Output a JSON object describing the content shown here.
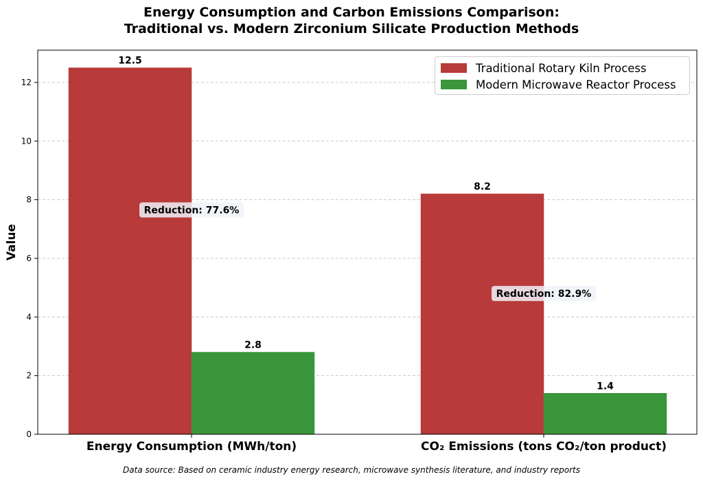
{
  "title_lines": [
    "Energy Consumption and Carbon Emissions Comparison:",
    "Traditional vs. Modern Zirconium Silicate Production Methods"
  ],
  "source_note": "Data source: Based on ceramic industry energy research, microwave synthesis literature, and industry reports",
  "chart_data": {
    "type": "bar",
    "ylabel": "Value",
    "xlabel": "",
    "ylim": [
      0,
      13.1
    ],
    "yticks": [
      "0",
      "2",
      "4",
      "6",
      "8",
      "10",
      "12"
    ],
    "grid": "y-dashed",
    "legend_position": "top-right",
    "categories": [
      "Energy Consumption (MWh/ton)",
      "CO₂ Emissions (tons CO₂/ton product)"
    ],
    "series": [
      {
        "name": "Traditional Rotary Kiln Process",
        "color": "#b83a3a",
        "values": [
          12.5,
          8.2
        ],
        "labels": [
          "12.5",
          "8.2"
        ]
      },
      {
        "name": "Modern Microwave Reactor Process",
        "color": "#3a963a",
        "values": [
          2.8,
          1.4
        ],
        "labels": [
          "2.8",
          "1.4"
        ]
      }
    ],
    "annotations": [
      "Reduction: 77.6%",
      "Reduction: 82.9%"
    ]
  }
}
